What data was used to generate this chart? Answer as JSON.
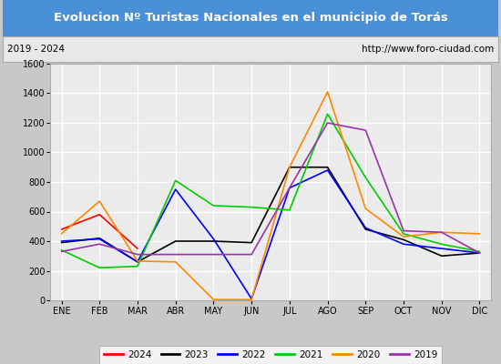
{
  "title": "Evolucion Nº Turistas Nacionales en el municipio de Torás",
  "subtitle_left": "2019 - 2024",
  "subtitle_right": "http://www.foro-ciudad.com",
  "months": [
    "ENE",
    "FEB",
    "MAR",
    "ABR",
    "MAY",
    "JUN",
    "JUL",
    "AGO",
    "SEP",
    "OCT",
    "NOV",
    "DIC"
  ],
  "ylim": [
    0,
    1600
  ],
  "yticks": [
    0,
    200,
    400,
    600,
    800,
    1000,
    1200,
    1400,
    1600
  ],
  "series": {
    "2024": {
      "color": "#ff0000",
      "values": [
        480,
        580,
        350,
        null,
        null,
        null,
        null,
        null,
        null,
        null,
        null,
        null
      ]
    },
    "2023": {
      "color": "#000000",
      "values": [
        390,
        420,
        260,
        400,
        400,
        390,
        900,
        900,
        480,
        410,
        300,
        320
      ]
    },
    "2022": {
      "color": "#0000ff",
      "values": [
        400,
        415,
        260,
        750,
        415,
        10,
        760,
        880,
        490,
        380,
        350,
        320
      ]
    },
    "2021": {
      "color": "#00cc00",
      "values": [
        340,
        220,
        230,
        810,
        640,
        630,
        610,
        1260,
        830,
        450,
        380,
        330
      ]
    },
    "2020": {
      "color": "#ff8800",
      "values": [
        450,
        670,
        265,
        260,
        5,
        5,
        900,
        1410,
        620,
        430,
        460,
        450
      ]
    },
    "2019": {
      "color": "#9933aa",
      "values": [
        330,
        380,
        310,
        310,
        310,
        310,
        760,
        1200,
        1150,
        470,
        460,
        320
      ]
    }
  },
  "legend_order": [
    "2024",
    "2023",
    "2022",
    "2021",
    "2020",
    "2019"
  ],
  "title_bg_color": "#4a90d9",
  "title_text_color": "#ffffff",
  "subtitle_bg_color": "#e8e8e8",
  "plot_bg_color": "#ebebeb",
  "grid_color": "#ffffff",
  "border_color": "#aaaaaa",
  "outer_bg_color": "#c8c8c8"
}
